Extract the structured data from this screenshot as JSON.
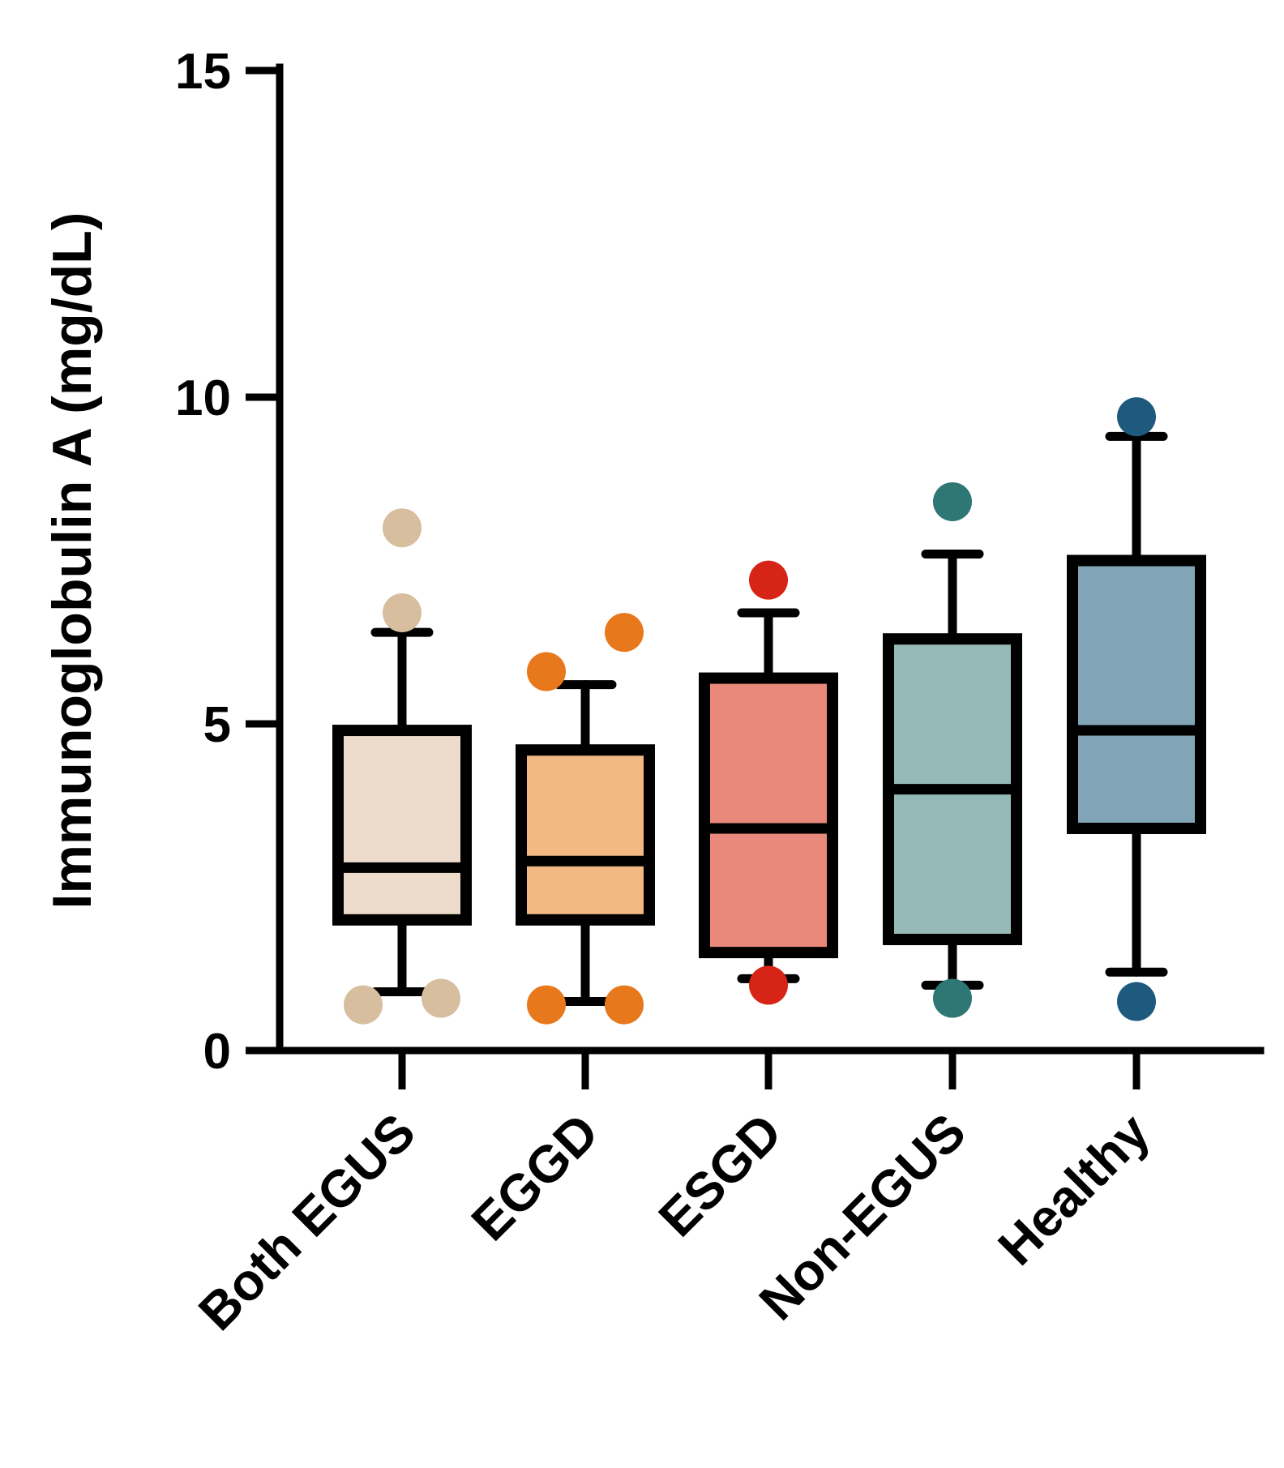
{
  "chart_data": {
    "type": "boxplot",
    "title": "",
    "xlabel": "",
    "ylabel": "Immunoglobulin A (mg/dL)",
    "ylim": [
      0,
      15
    ],
    "yticks": [
      0,
      5,
      10,
      15
    ],
    "ytick_labels": [
      "0",
      "5",
      "10",
      "15"
    ],
    "grid": false,
    "legend": "none",
    "categories": [
      "Both EGUS",
      "EGGD",
      "ESGD",
      "Non-EGUS",
      "Healthy"
    ],
    "series": [
      {
        "name": "Both EGUS",
        "whisker_low": 0.9,
        "q1": 2.0,
        "median": 2.8,
        "q3": 4.9,
        "whisker_high": 6.4,
        "outliers": [
          0.7,
          0.8,
          6.7,
          8.0
        ],
        "fill": "#EDDCCB",
        "point_color": "#D6BE9E"
      },
      {
        "name": "EGGD",
        "whisker_low": 0.75,
        "q1": 2.0,
        "median": 2.9,
        "q3": 4.6,
        "whisker_high": 5.6,
        "outliers": [
          0.7,
          0.7,
          5.8,
          6.4
        ],
        "fill": "#F2B983",
        "point_color": "#E8781C"
      },
      {
        "name": "ESGD",
        "whisker_low": 1.1,
        "q1": 1.5,
        "median": 3.4,
        "q3": 5.7,
        "whisker_high": 6.7,
        "outliers": [
          1.0,
          7.2
        ],
        "fill": "#E9897B",
        "point_color": "#D62516"
      },
      {
        "name": "Non-EGUS",
        "whisker_low": 1.0,
        "q1": 1.7,
        "median": 4.0,
        "q3": 6.3,
        "whisker_high": 7.6,
        "outliers": [
          0.8,
          8.4
        ],
        "fill": "#94B9B6",
        "point_color": "#2F7774"
      },
      {
        "name": "Healthy",
        "whisker_low": 1.2,
        "q1": 3.4,
        "median": 4.9,
        "q3": 7.5,
        "whisker_high": 9.4,
        "outliers": [
          0.75,
          9.7
        ],
        "fill": "#81A4B6",
        "point_color": "#1E5A7E"
      }
    ]
  }
}
